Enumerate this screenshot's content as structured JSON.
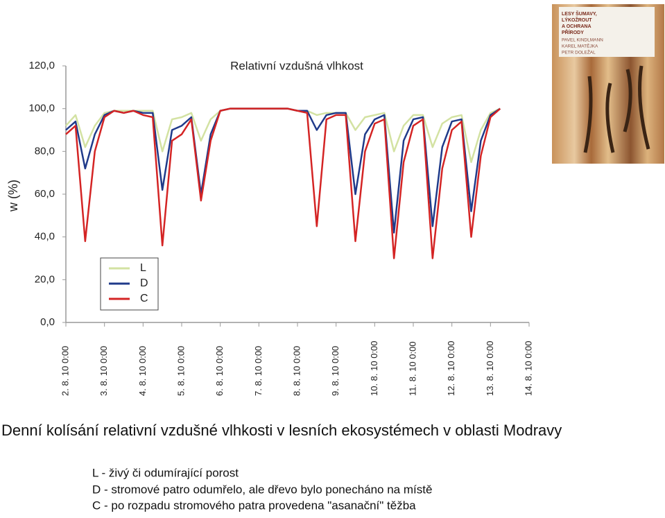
{
  "chart_data": {
    "type": "line",
    "title": "Relativní vzdušná vlhkost",
    "y_label": "w (%)",
    "x": [
      0,
      0.25,
      0.5,
      0.75,
      1,
      1.25,
      1.5,
      1.75,
      2,
      2.25,
      2.5,
      2.75,
      3,
      3.25,
      3.5,
      3.75,
      4,
      4.25,
      4.5,
      4.75,
      5,
      5.25,
      5.5,
      5.75,
      6,
      6.25,
      6.5,
      6.75,
      7,
      7.25,
      7.5,
      7.75,
      8,
      8.25,
      8.5,
      8.75,
      9,
      9.25,
      9.5,
      9.75,
      10,
      10.25,
      10.5,
      10.75,
      11,
      11.25
    ],
    "series": [
      {
        "name": "L",
        "color": "#d3e2a2",
        "values": [
          92,
          97,
          82,
          92,
          98,
          99,
          99,
          99,
          99,
          99,
          80,
          95,
          96,
          98,
          85,
          95,
          99,
          100,
          100,
          100,
          100,
          100,
          100,
          100,
          99,
          99,
          97,
          98,
          98,
          98,
          90,
          96,
          97,
          98,
          80,
          92,
          97,
          97,
          82,
          93,
          96,
          97,
          75,
          90,
          98,
          100
        ]
      },
      {
        "name": "D",
        "color": "#1f3a8a",
        "values": [
          90,
          94,
          72,
          88,
          97,
          99,
          98,
          99,
          98,
          98,
          62,
          90,
          92,
          96,
          60,
          88,
          99,
          100,
          100,
          100,
          100,
          100,
          100,
          100,
          99,
          99,
          90,
          97,
          98,
          98,
          60,
          88,
          95,
          97,
          42,
          85,
          95,
          96,
          45,
          82,
          94,
          95,
          52,
          85,
          97,
          100
        ]
      },
      {
        "name": "C",
        "color": "#d42424",
        "values": [
          88,
          92,
          38,
          80,
          96,
          99,
          98,
          99,
          97,
          96,
          36,
          85,
          88,
          95,
          57,
          85,
          99,
          100,
          100,
          100,
          100,
          100,
          100,
          100,
          99,
          98,
          45,
          95,
          97,
          97,
          38,
          80,
          93,
          95,
          30,
          75,
          92,
          95,
          30,
          72,
          90,
          94,
          40,
          78,
          96,
          100
        ]
      }
    ],
    "xlim": [
      0,
      12
    ],
    "xticks": [
      {
        "value": 0,
        "label": "2. 8. 10 0:00"
      },
      {
        "value": 1,
        "label": "3. 8. 10 0:00"
      },
      {
        "value": 2,
        "label": "4. 8. 10 0:00"
      },
      {
        "value": 3,
        "label": "5. 8. 10 0:00"
      },
      {
        "value": 4,
        "label": "6. 8. 10 0:00"
      },
      {
        "value": 5,
        "label": "7. 8. 10 0:00"
      },
      {
        "value": 6,
        "label": "8. 8. 10 0:00"
      },
      {
        "value": 7,
        "label": "9. 8. 10 0:00"
      },
      {
        "value": 8,
        "label": "10. 8. 10 0:00"
      },
      {
        "value": 9,
        "label": "11. 8. 10 0:00"
      },
      {
        "value": 10,
        "label": "12. 8. 10 0:00"
      },
      {
        "value": 11,
        "label": "13. 8. 10 0:00"
      },
      {
        "value": 12,
        "label": "14. 8. 10 0:00"
      }
    ],
    "ylim": [
      0,
      120
    ],
    "yticks": [
      {
        "value": 0,
        "label": "0,0"
      },
      {
        "value": 20,
        "label": "20,0"
      },
      {
        "value": 40,
        "label": "40,0"
      },
      {
        "value": 60,
        "label": "60,0"
      },
      {
        "value": 80,
        "label": "80,0"
      },
      {
        "value": 100,
        "label": "100,0"
      },
      {
        "value": 120,
        "label": "120,0"
      }
    ],
    "grid": false,
    "legend": "lower left"
  },
  "book_cover": {
    "title_lines": [
      "LESY ŠUMAVY,",
      "LÝKOŽROUT",
      "A OCHRANA",
      "PŘÍRODY"
    ],
    "authors": [
      "PAVEL KINDLMANN",
      "KAREL MATĚJKA",
      "PETR DOLEŽAL"
    ]
  },
  "caption": {
    "title": "Denní kolísání relativní vzdušné vlhkosti v lesních ekosystémech v oblasti Modravy",
    "notes": [
      "L - živý či odumírající porost",
      "D - stromové patro odumřelo, ale dřevo bylo ponecháno na místě",
      "C - po rozpadu stromového patra provedena \"asanační\" těžba"
    ]
  }
}
